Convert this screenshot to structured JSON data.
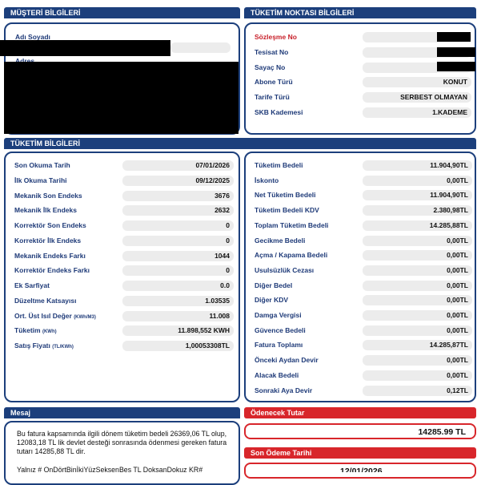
{
  "sections": {
    "customer": "MÜŞTERİ BİLGİLERİ",
    "meter_point": "TÜKETİM NOKTASI BİLGİLERİ",
    "consumption": "TÜKETİM BİLGİLERİ",
    "message": "Mesaj",
    "amount_due": "Ödenecek Tutar",
    "last_payment": "Son Ödeme Tarihi"
  },
  "customer": {
    "name_label": "Adı Soyadı",
    "address_label": "Adres"
  },
  "meter_point": [
    {
      "label": "Sözleşme No",
      "value": "",
      "red": true
    },
    {
      "label": "Tesisat No",
      "value": ""
    },
    {
      "label": "Sayaç No",
      "value": ""
    },
    {
      "label": "Abone Türü",
      "value": "KONUT"
    },
    {
      "label": "Tarife Türü",
      "value": "SERBEST OLMAYAN"
    },
    {
      "label": "SKB Kademesi",
      "value": "1.KADEME"
    }
  ],
  "consumption_left": [
    {
      "label": "Son Okuma Tarih",
      "unit": "",
      "value": "07/01/2026"
    },
    {
      "label": "İlk Okuma Tarihi",
      "unit": "",
      "value": "09/12/2025"
    },
    {
      "label": "Mekanik Son Endeks",
      "unit": "",
      "value": "3676"
    },
    {
      "label": "Mekanik İlk Endeks",
      "unit": "",
      "value": "2632"
    },
    {
      "label": "Korrektör Son Endeks",
      "unit": "",
      "value": "0"
    },
    {
      "label": "Korrektör İlk Endeks",
      "unit": "",
      "value": "0"
    },
    {
      "label": "Mekanik Endeks Farkı",
      "unit": "",
      "value": "1044"
    },
    {
      "label": "Korrektör Endeks Farkı",
      "unit": "",
      "value": "0"
    },
    {
      "label": "Ek Sarfiyat",
      "unit": "",
      "value": "0.0"
    },
    {
      "label": "Düzeltme Katsayısı",
      "unit": "",
      "value": "1.03535"
    },
    {
      "label": "Ort. Üst Isıl Değer",
      "unit": "(KWh/M3)",
      "value": "11.008"
    },
    {
      "label": "Tüketim",
      "unit": "(KWh)",
      "value": "11.898,552 KWH"
    },
    {
      "label": "Satış Fiyatı",
      "unit": "(TL/KWh)",
      "value": "1,00053308TL"
    }
  ],
  "consumption_right": [
    {
      "label": "Tüketim Bedeli",
      "value": "11.904,90TL"
    },
    {
      "label": "İskonto",
      "value": "0,00TL"
    },
    {
      "label": "Net Tüketim Bedeli",
      "value": "11.904,90TL"
    },
    {
      "label": "Tüketim Bedeli KDV",
      "value": "2.380,98TL"
    },
    {
      "label": "Toplam Tüketim Bedeli",
      "value": "14.285,88TL"
    },
    {
      "label": "Gecikme Bedeli",
      "value": "0,00TL"
    },
    {
      "label": "Açma / Kapama Bedeli",
      "value": "0,00TL"
    },
    {
      "label": "Usulsüzlük Cezası",
      "value": "0,00TL"
    },
    {
      "label": "Diğer Bedel",
      "value": "0,00TL"
    },
    {
      "label": "Diğer KDV",
      "value": "0,00TL"
    },
    {
      "label": "Damga Vergisi",
      "value": "0,00TL"
    },
    {
      "label": "Güvence Bedeli",
      "value": "0,00TL"
    },
    {
      "label": "Fatura Toplamı",
      "value": "14.285,87TL"
    },
    {
      "label": "Önceki Aydan Devir",
      "value": "0,00TL"
    },
    {
      "label": "Alacak Bedeli",
      "value": "0,00TL"
    },
    {
      "label": "Sonraki Aya Devir",
      "value": "0,12TL"
    }
  ],
  "message": {
    "text": "Bu fatura kapsamında ilgili dönem tüketim bedeli 26369,06 TL olup, 12083,18 TL lik devlet desteği sonrasında ödenmesi gereken fatura tutarı 14285,88 TL dir.",
    "in_words": "Yalnız # OnDörtBinİkiYüzSeksenBeş TL DoksanDokuz KR#"
  },
  "amount_due": "14285.99 TL",
  "last_payment_date": "12/01/2026"
}
